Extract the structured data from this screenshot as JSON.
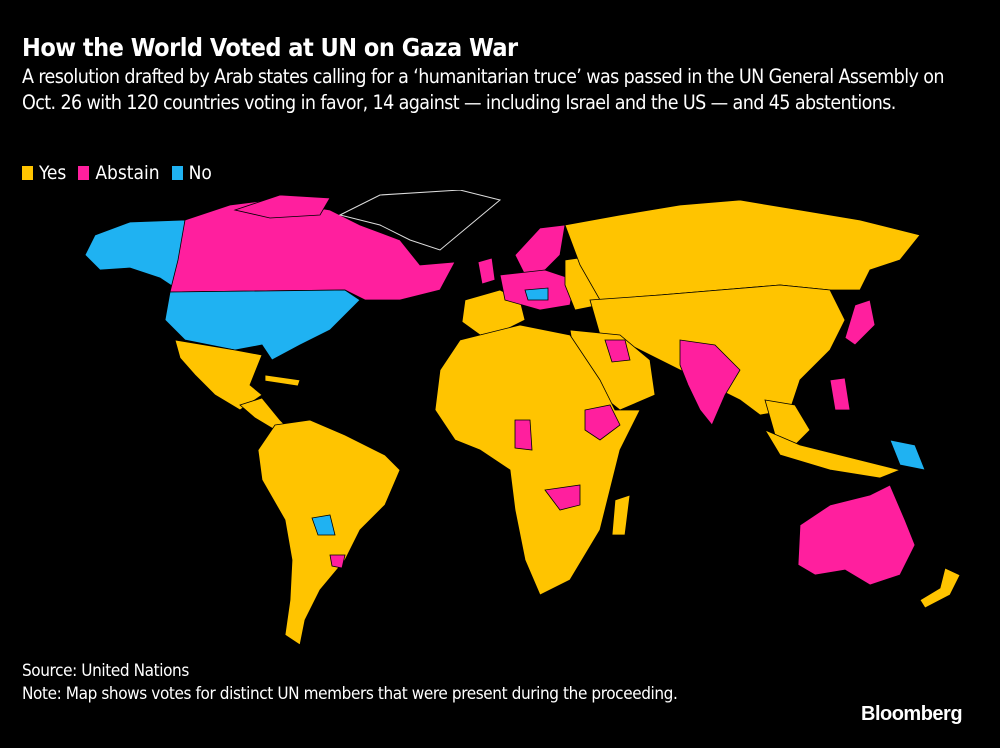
{
  "header": {
    "title": "How the World Voted at UN on Gaza War",
    "subtitle": "A resolution drafted by Arab states calling for a ‘humanitarian truce’ was passed in the UN General Assembly on Oct. 26 with 120 countries voting in favor, 14 against — including Israel and the US — and 45 abstentions."
  },
  "legend": [
    {
      "label": "Yes",
      "color": "#FFC400"
    },
    {
      "label": "Abstain",
      "color": "#FF1F9E"
    },
    {
      "label": "No",
      "color": "#1FB2F2"
    }
  ],
  "map": {
    "colors": {
      "yes": "#FFC400",
      "abstain": "#FF1F9E",
      "no": "#1FB2F2",
      "none": "#000000"
    },
    "vote_totals": {
      "yes": 120,
      "no": 14,
      "abstain": 45
    }
  },
  "footer": {
    "source": "Source: United Nations",
    "note": "Note: Map shows votes for distinct UN members that were present during the proceeding.",
    "logo": "Bloomberg"
  }
}
